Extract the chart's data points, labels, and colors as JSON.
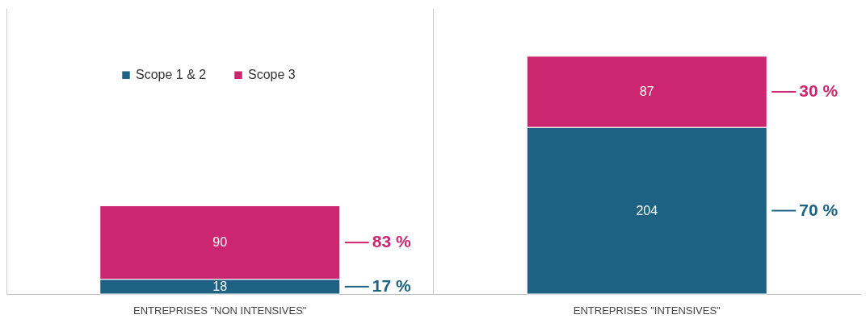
{
  "chart_data": {
    "type": "bar",
    "stacked": true,
    "categories": [
      "ENTREPRISES \"NON INTENSIVES\"",
      "ENTREPRISES \"INTENSIVES\""
    ],
    "series": [
      {
        "name": "Scope 1 & 2",
        "color": "#1d6282",
        "values": [
          18,
          204
        ]
      },
      {
        "name": "Scope 3",
        "color": "#cc2670",
        "values": [
          90,
          87
        ]
      }
    ],
    "ylim": [
      0,
      350
    ],
    "data_labels": true,
    "legend": "top left",
    "grid": "x",
    "annotations": [
      "17 %",
      "83 %",
      "70 %",
      "30 %"
    ]
  }
}
